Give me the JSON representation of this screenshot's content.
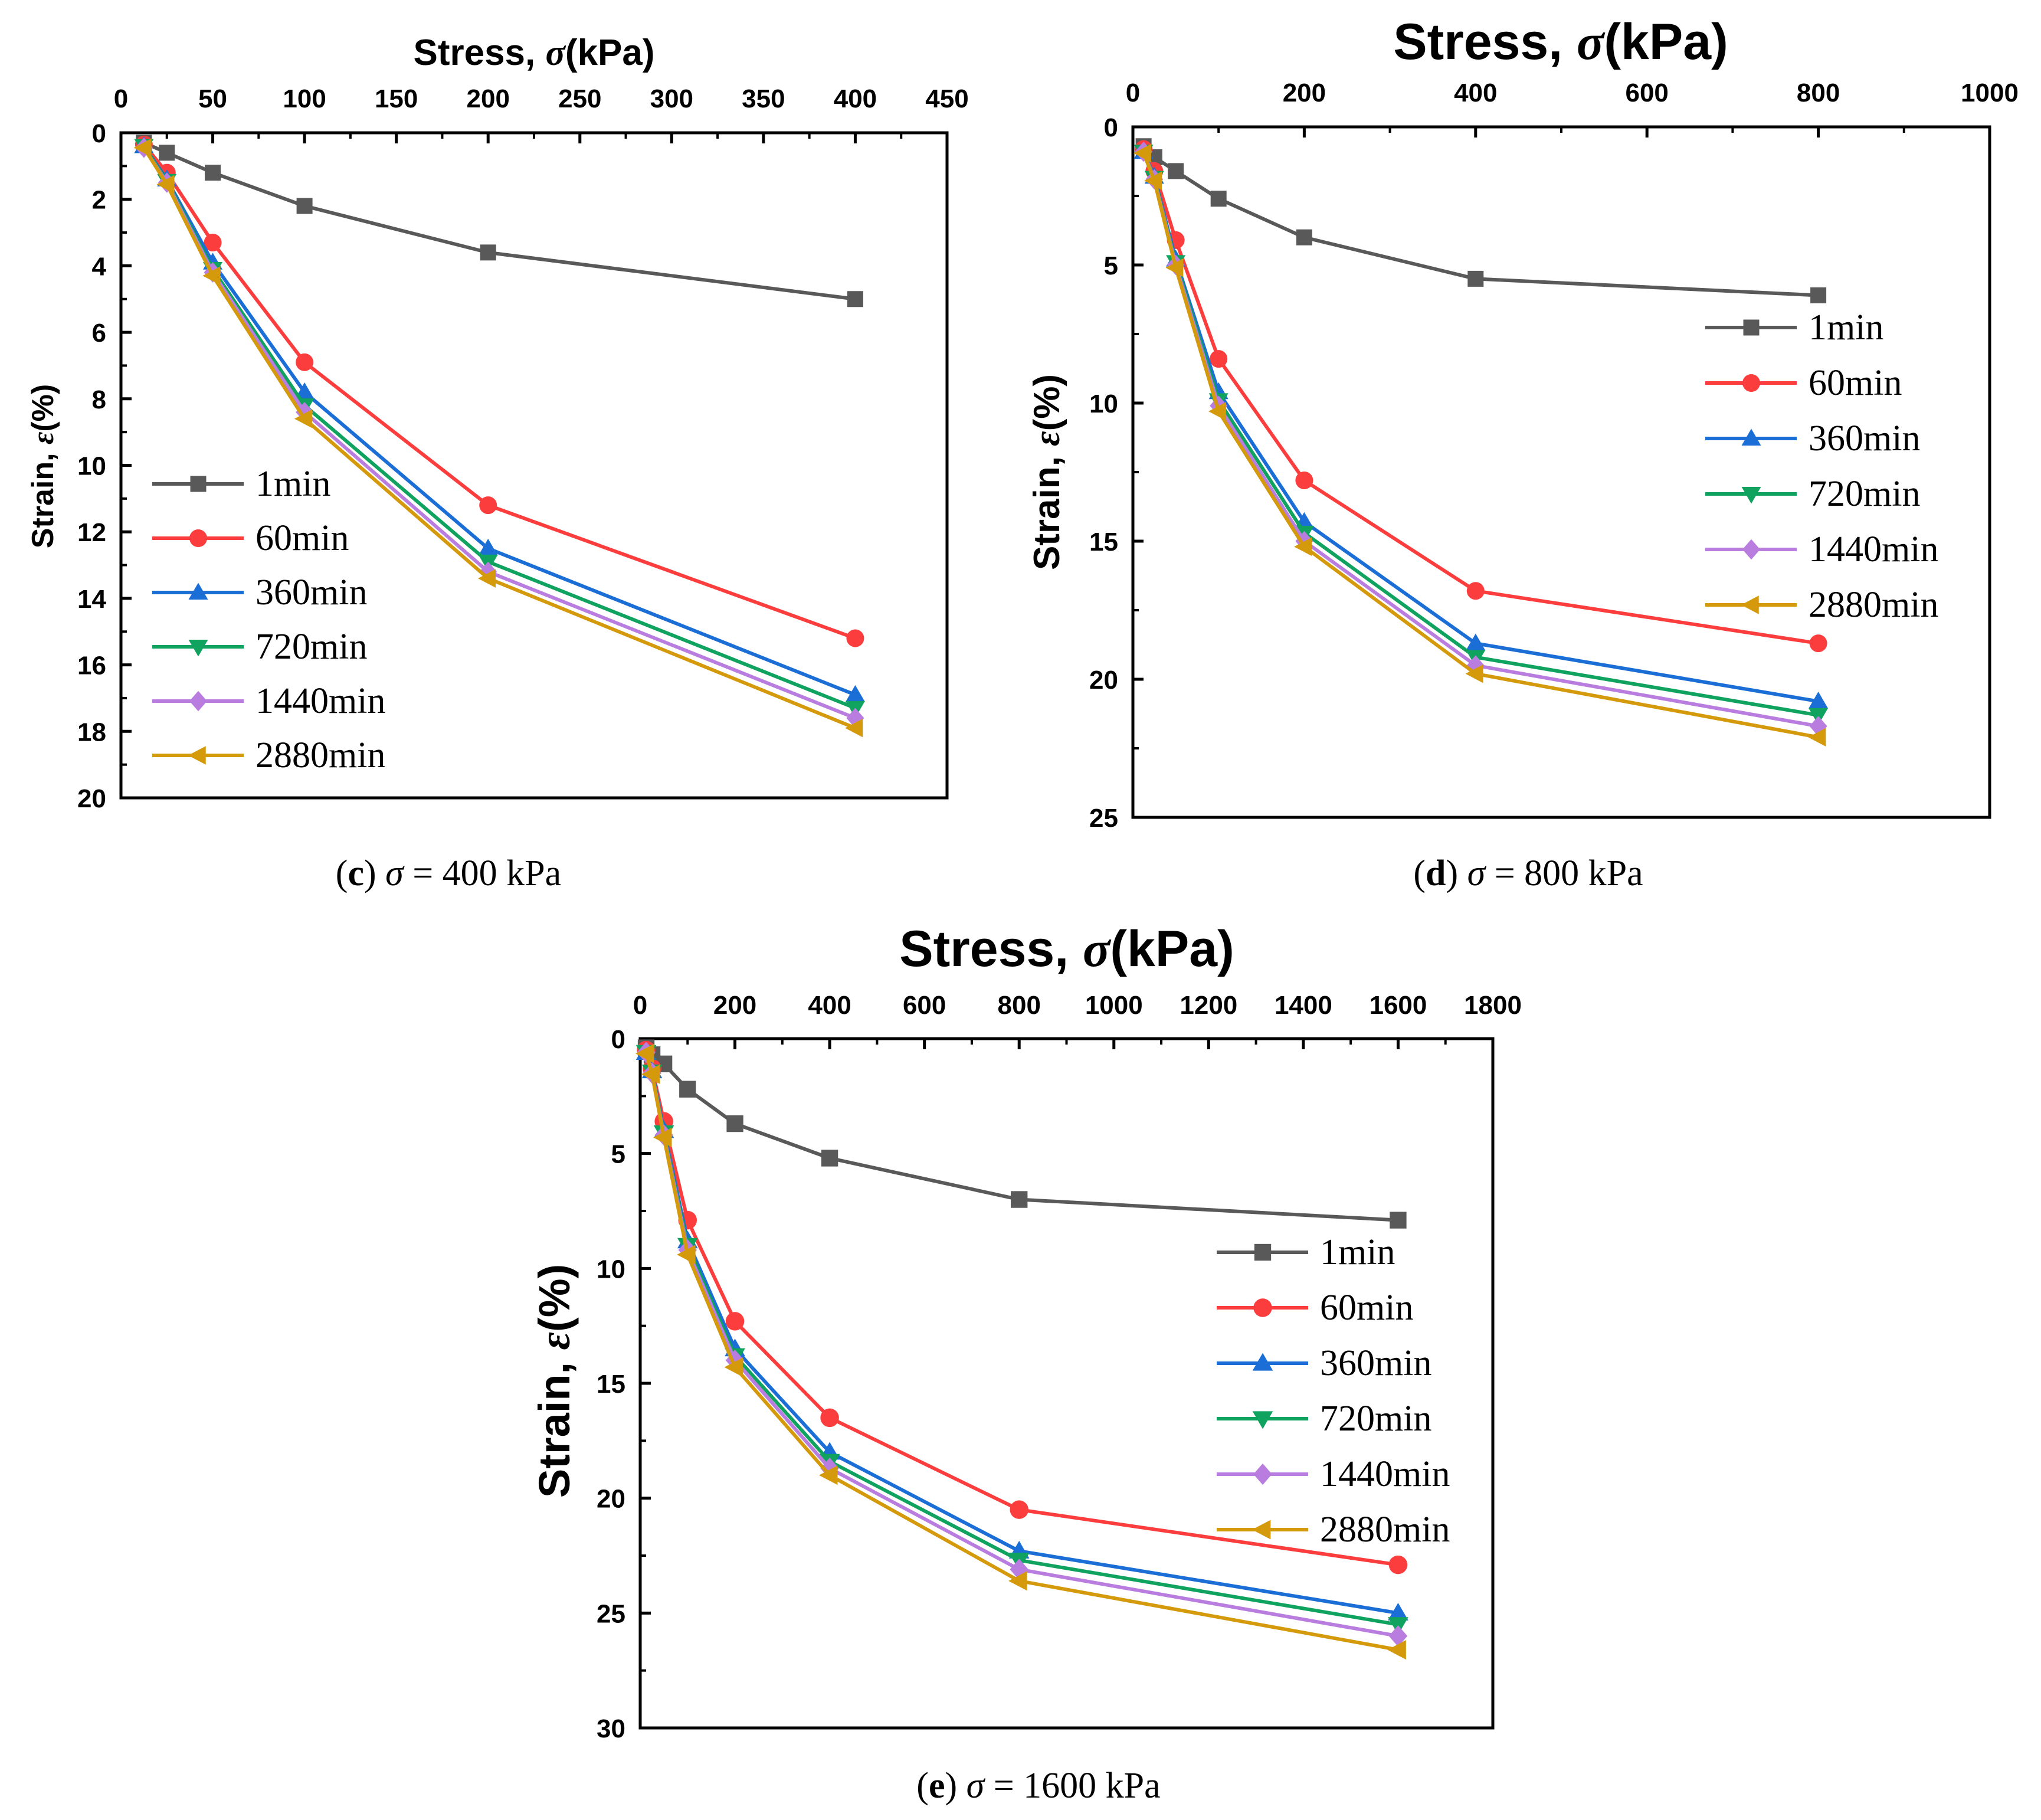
{
  "chart_data": [
    {
      "type": "line",
      "panel_caption": {
        "letter": "(c)",
        "text": " σ = 400 kPa"
      },
      "title": "Stress, σ(kPa)",
      "xlabel": "Stress, σ(kPa)",
      "ylabel": "Strain, ε(%)",
      "x_axis_position": "top",
      "y_inverted": true,
      "xlim": [
        0,
        450
      ],
      "ylim": [
        0,
        20
      ],
      "xticks": [
        0,
        50,
        100,
        150,
        200,
        250,
        300,
        350,
        400,
        450
      ],
      "yticks": [
        0,
        2,
        4,
        6,
        8,
        10,
        12,
        14,
        16,
        18,
        20
      ],
      "legend_position": "left-middle",
      "x": [
        12.5,
        25,
        50,
        100,
        200,
        400
      ],
      "series": [
        {
          "name": "1min",
          "color": "#595959",
          "marker": "square",
          "values": [
            0.3,
            0.6,
            1.2,
            2.2,
            3.6,
            5.0
          ]
        },
        {
          "name": "60min",
          "color": "#fb3d3d",
          "marker": "circle",
          "values": [
            0.35,
            1.2,
            3.3,
            6.9,
            11.2,
            15.2
          ]
        },
        {
          "name": "360min",
          "color": "#1a6ed6",
          "marker": "triangle-up",
          "values": [
            0.4,
            1.4,
            3.9,
            7.8,
            12.5,
            16.9
          ]
        },
        {
          "name": "720min",
          "color": "#10a35f",
          "marker": "triangle-down",
          "values": [
            0.4,
            1.45,
            4.1,
            8.2,
            12.9,
            17.3
          ]
        },
        {
          "name": "1440min",
          "color": "#b97de0",
          "marker": "diamond",
          "values": [
            0.45,
            1.5,
            4.2,
            8.4,
            13.2,
            17.6
          ]
        },
        {
          "name": "2880min",
          "color": "#d49a0b",
          "marker": "triangle-left",
          "values": [
            0.45,
            1.55,
            4.3,
            8.6,
            13.4,
            17.9
          ]
        }
      ]
    },
    {
      "type": "line",
      "panel_caption": {
        "letter": "(d)",
        "text": " σ = 800 kPa"
      },
      "title": "Stress, σ(kPa)",
      "xlabel": "Stress, σ(kPa)",
      "ylabel": "Strain, ε(%)",
      "x_axis_position": "top",
      "y_inverted": true,
      "xlim": [
        0,
        1000
      ],
      "ylim": [
        0,
        25
      ],
      "xticks": [
        0,
        200,
        400,
        600,
        800,
        1000
      ],
      "yticks": [
        0,
        5,
        10,
        15,
        20,
        25
      ],
      "legend_position": "right-upper",
      "x": [
        12.5,
        25,
        50,
        100,
        200,
        400,
        800
      ],
      "series": [
        {
          "name": "1min",
          "color": "#595959",
          "marker": "square",
          "values": [
            0.7,
            1.1,
            1.6,
            2.6,
            4.0,
            5.5,
            6.1
          ]
        },
        {
          "name": "60min",
          "color": "#fb3d3d",
          "marker": "circle",
          "values": [
            0.8,
            1.6,
            4.1,
            8.4,
            12.8,
            16.8,
            18.7
          ]
        },
        {
          "name": "360min",
          "color": "#1a6ed6",
          "marker": "triangle-up",
          "values": [
            0.9,
            1.8,
            4.8,
            9.6,
            14.3,
            18.7,
            20.8
          ]
        },
        {
          "name": "720min",
          "color": "#10a35f",
          "marker": "triangle-down",
          "values": [
            0.9,
            1.85,
            4.9,
            9.9,
            14.7,
            19.2,
            21.3
          ]
        },
        {
          "name": "1440min",
          "color": "#b97de0",
          "marker": "diamond",
          "values": [
            0.9,
            1.9,
            5.0,
            10.1,
            15.0,
            19.5,
            21.7
          ]
        },
        {
          "name": "2880min",
          "color": "#d49a0b",
          "marker": "triangle-left",
          "values": [
            0.95,
            1.95,
            5.1,
            10.3,
            15.2,
            19.8,
            22.1
          ]
        }
      ]
    },
    {
      "type": "line",
      "panel_caption": {
        "letter": "(e)",
        "text": " σ = 1600 kPa"
      },
      "title": "Stress, σ(kPa)",
      "xlabel": "Stress, σ(kPa)",
      "ylabel": "Strain, ε(%)",
      "x_axis_position": "top",
      "y_inverted": true,
      "xlim": [
        0,
        1800
      ],
      "ylim": [
        0,
        30
      ],
      "xticks": [
        0,
        200,
        400,
        600,
        800,
        1000,
        1200,
        1400,
        1600,
        1800
      ],
      "yticks": [
        0,
        5,
        10,
        15,
        20,
        25,
        30
      ],
      "legend_position": "right-middle",
      "x": [
        12.5,
        25,
        50,
        100,
        200,
        400,
        800,
        1600
      ],
      "series": [
        {
          "name": "1min",
          "color": "#595959",
          "marker": "square",
          "values": [
            0.4,
            0.7,
            1.1,
            2.2,
            3.7,
            5.2,
            7.0,
            7.9
          ]
        },
        {
          "name": "60min",
          "color": "#fb3d3d",
          "marker": "circle",
          "values": [
            0.5,
            1.3,
            3.6,
            7.9,
            12.3,
            16.5,
            20.5,
            22.9
          ]
        },
        {
          "name": "360min",
          "color": "#1a6ed6",
          "marker": "triangle-up",
          "values": [
            0.6,
            1.4,
            4.0,
            8.8,
            13.5,
            18.0,
            22.3,
            25.0
          ]
        },
        {
          "name": "720min",
          "color": "#10a35f",
          "marker": "triangle-down",
          "values": [
            0.6,
            1.45,
            4.1,
            9.0,
            13.8,
            18.4,
            22.7,
            25.5
          ]
        },
        {
          "name": "1440min",
          "color": "#b97de0",
          "marker": "diamond",
          "values": [
            0.6,
            1.5,
            4.2,
            9.2,
            14.0,
            18.7,
            23.1,
            26.0
          ]
        },
        {
          "name": "2880min",
          "color": "#d49a0b",
          "marker": "triangle-left",
          "values": [
            0.65,
            1.55,
            4.3,
            9.4,
            14.3,
            19.0,
            23.6,
            26.6
          ]
        }
      ]
    }
  ]
}
